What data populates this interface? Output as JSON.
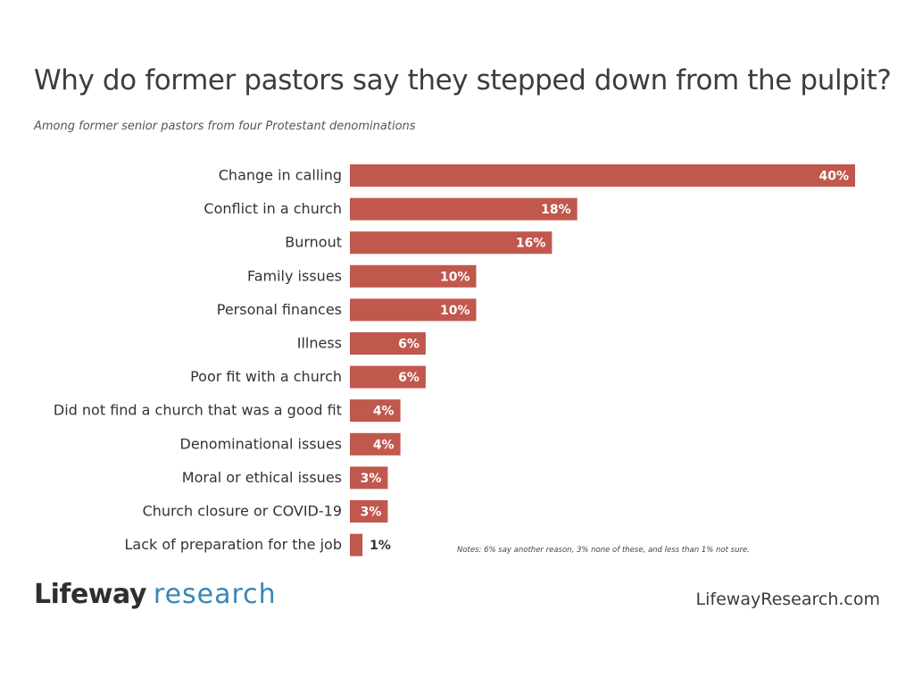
{
  "header": {
    "title": "Why do former pastors say they stepped down from the pulpit?",
    "subtitle": "Among former senior pastors from four Protestant denominations"
  },
  "chart_data": {
    "type": "bar",
    "orientation": "horizontal",
    "categories": [
      "Change in calling",
      "Conflict in a church",
      "Burnout",
      "Family issues",
      "Personal finances",
      "Illness",
      "Poor fit with a church",
      "Did not find a church that was a good fit",
      "Denominational issues",
      "Moral or ethical issues",
      "Church closure or COVID-19",
      "Lack of preparation for the job"
    ],
    "values": [
      40,
      18,
      16,
      10,
      10,
      6,
      6,
      4,
      4,
      3,
      3,
      1
    ],
    "value_labels": [
      "40%",
      "18%",
      "16%",
      "10%",
      "10%",
      "6%",
      "6%",
      "4%",
      "4%",
      "3%",
      "3%",
      "1%"
    ],
    "title": "Why do former pastors say they stepped down from the pulpit?",
    "subtitle": "Among former senior pastors from four Protestant denominations",
    "xlabel": "",
    "ylabel": "",
    "xlim": [
      0,
      40
    ],
    "grid": false,
    "bar_color": "#c0584e",
    "label_color_inside": "#ffffff",
    "label_color_outside": "#333333"
  },
  "footer": {
    "note": "Notes: 6% say another reason, 3% none of these, and less than 1% not sure.",
    "logo_brand": "Lifeway",
    "logo_sub": "research",
    "website": "LifewayResearch.com"
  }
}
